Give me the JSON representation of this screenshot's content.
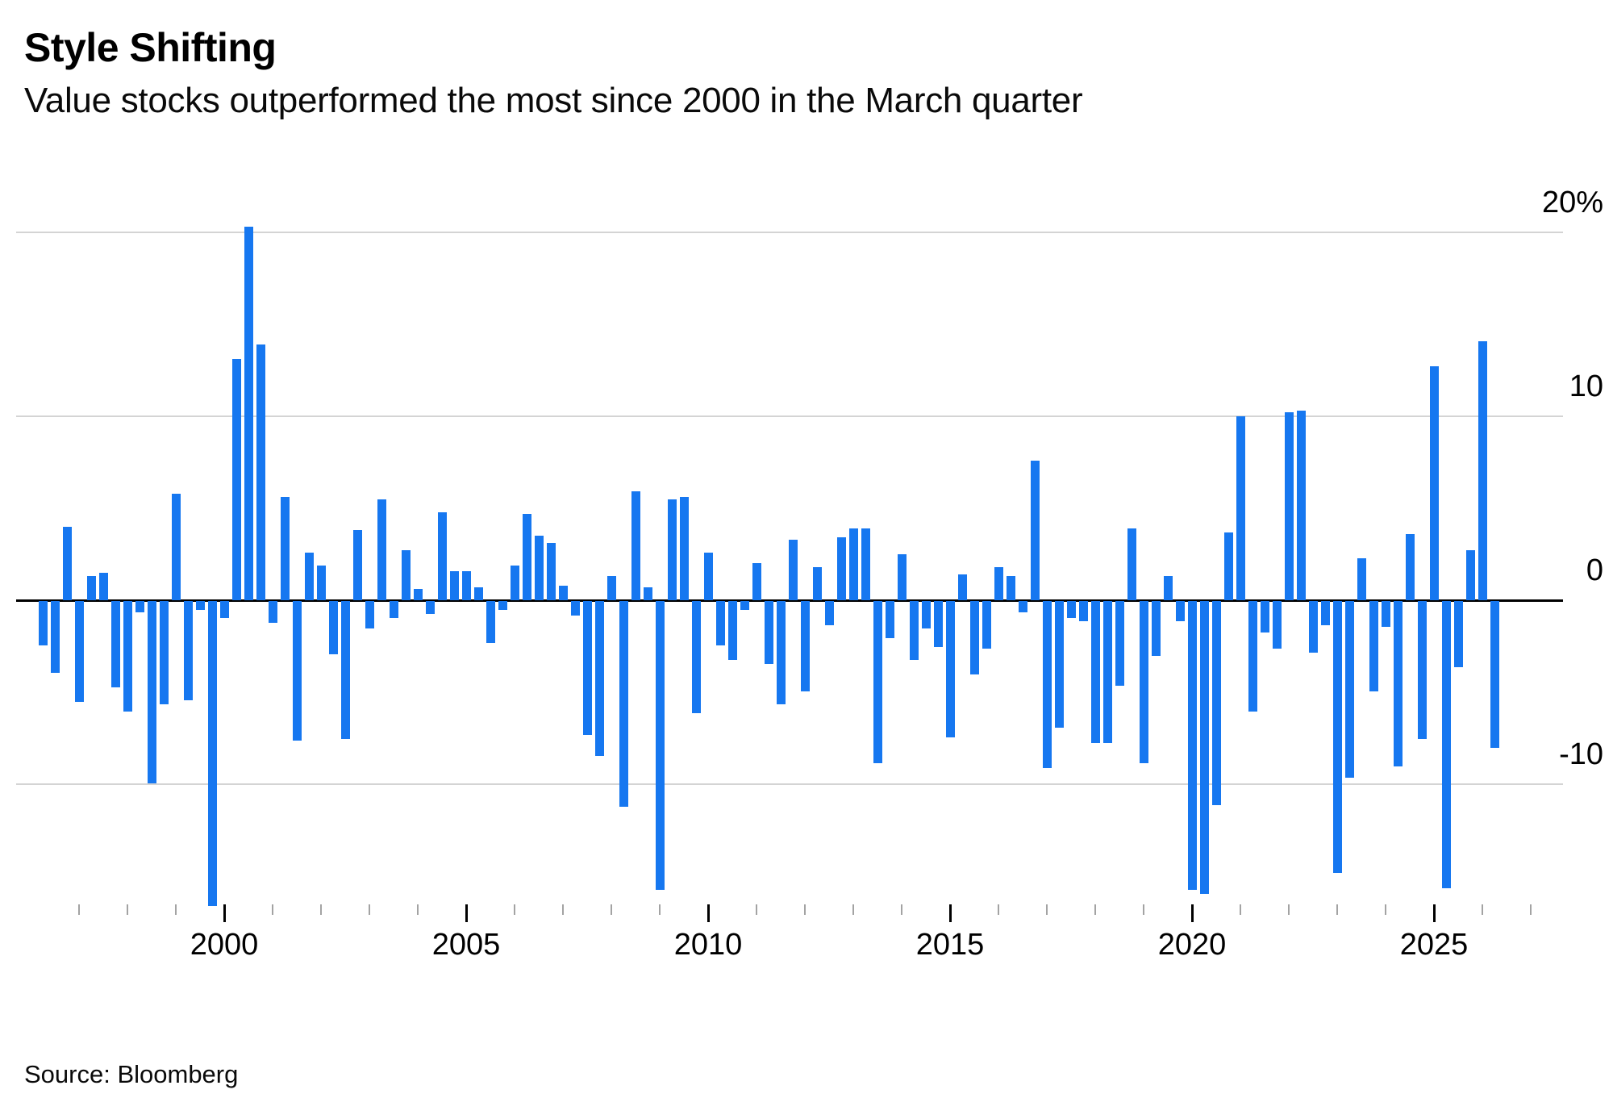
{
  "header": {
    "title": "Style Shifting",
    "subtitle": "Value stocks outperformed the most since 2000 in the March quarter"
  },
  "footer": {
    "source": "Source: Bloomberg"
  },
  "colors": {
    "bar": "#1677f0",
    "grid": "#d4d4d4",
    "zero_axis": "#000000",
    "tick_minor": "#a3a3a3",
    "tick_major": "#000000",
    "text": "#000000"
  },
  "chart_data": {
    "type": "bar",
    "title": "Style Shifting",
    "subtitle": "Value stocks outperformed the most since 2000 in the March quarter",
    "unit": "%",
    "grid": "horizontal-only",
    "legend": "none",
    "y_axis": {
      "side": "right",
      "min": -20,
      "max": 22,
      "ticks": [
        {
          "label": "20%",
          "value": 20
        },
        {
          "label": "10",
          "value": 10
        },
        {
          "label": "0",
          "value": 0
        },
        {
          "label": "-10",
          "value": -10
        }
      ]
    },
    "x_axis": {
      "tick_year_start": 1997,
      "tick_year_end": 2027,
      "labeled_years": [
        "2000",
        "2005",
        "2010",
        "2015",
        "2020",
        "2025"
      ]
    },
    "categories": [
      "1996 Q2",
      "1996 Q3",
      "1996 Q4",
      "1997 Q1",
      "1997 Q2",
      "1997 Q3",
      "1997 Q4",
      "1998 Q1",
      "1998 Q2",
      "1998 Q3",
      "1998 Q4",
      "1999 Q1",
      "1999 Q2",
      "1999 Q3",
      "1999 Q4",
      "2000 Q1",
      "2000 Q2",
      "2000 Q3",
      "2000 Q4",
      "2001 Q1",
      "2001 Q2",
      "2001 Q3",
      "2001 Q4",
      "2002 Q1",
      "2002 Q2",
      "2002 Q3",
      "2002 Q4",
      "2003 Q1",
      "2003 Q2",
      "2003 Q3",
      "2003 Q4",
      "2004 Q1",
      "2004 Q2",
      "2004 Q3",
      "2004 Q4",
      "2005 Q1",
      "2005 Q2",
      "2005 Q3",
      "2005 Q4",
      "2006 Q1",
      "2006 Q2",
      "2006 Q3",
      "2006 Q4",
      "2007 Q1",
      "2007 Q2",
      "2007 Q3",
      "2007 Q4",
      "2008 Q1",
      "2008 Q2",
      "2008 Q3",
      "2008 Q4",
      "2009 Q1",
      "2009 Q2",
      "2009 Q3",
      "2009 Q4",
      "2010 Q1",
      "2010 Q2",
      "2010 Q3",
      "2010 Q4",
      "2011 Q1",
      "2011 Q2",
      "2011 Q3",
      "2011 Q4",
      "2012 Q1",
      "2012 Q2",
      "2012 Q3",
      "2012 Q4",
      "2013 Q1",
      "2013 Q2",
      "2013 Q3",
      "2013 Q4",
      "2014 Q1",
      "2014 Q2",
      "2014 Q3",
      "2014 Q4",
      "2015 Q1",
      "2015 Q2",
      "2015 Q3",
      "2015 Q4",
      "2016 Q1",
      "2016 Q2",
      "2016 Q3",
      "2016 Q4",
      "2017 Q1",
      "2017 Q2",
      "2017 Q3",
      "2017 Q4",
      "2018 Q1",
      "2018 Q2",
      "2018 Q3",
      "2018 Q4",
      "2019 Q1",
      "2019 Q2",
      "2019 Q3",
      "2019 Q4",
      "2020 Q1",
      "2020 Q2",
      "2020 Q3",
      "2020 Q4",
      "2021 Q1",
      "2021 Q2",
      "2021 Q3",
      "2021 Q4",
      "2022 Q1",
      "2022 Q2",
      "2022 Q3",
      "2022 Q4",
      "2023 Q1",
      "2023 Q2",
      "2023 Q3",
      "2023 Q4",
      "2024 Q1",
      "2024 Q2",
      "2024 Q3",
      "2024 Q4",
      "2025 Q1",
      "2025 Q2",
      "2025 Q3",
      "2025 Q4",
      "2026 Q1",
      "2026 Q2"
    ],
    "values": [
      -2.4,
      -3.9,
      4.0,
      -5.5,
      1.3,
      1.5,
      -4.7,
      -6.0,
      -0.6,
      -9.9,
      -5.6,
      5.8,
      -5.4,
      -0.5,
      -16.6,
      -0.9,
      13.1,
      20.3,
      13.9,
      -1.2,
      5.6,
      -7.6,
      2.6,
      1.9,
      -2.9,
      -7.5,
      3.8,
      -1.5,
      5.5,
      -0.9,
      2.7,
      0.6,
      -0.7,
      4.8,
      1.6,
      1.6,
      0.7,
      -2.3,
      -0.5,
      1.9,
      4.7,
      3.5,
      3.1,
      0.8,
      -0.8,
      -7.3,
      -8.4,
      1.3,
      -11.2,
      5.9,
      0.7,
      -15.7,
      5.5,
      5.6,
      -6.1,
      2.6,
      -2.4,
      -3.2,
      -0.5,
      2.0,
      -3.4,
      -5.6,
      3.3,
      -4.9,
      1.8,
      -1.3,
      3.4,
      3.9,
      3.9,
      -8.8,
      -2.0,
      2.5,
      -3.2,
      -1.5,
      -2.5,
      -7.4,
      1.4,
      -4.0,
      -2.6,
      1.8,
      1.3,
      -0.6,
      7.6,
      -9.1,
      -6.9,
      -0.9,
      -1.1,
      -7.7,
      -7.7,
      -4.6,
      3.9,
      -8.8,
      -3.0,
      1.3,
      -1.1,
      -15.7,
      -15.9,
      -11.1,
      3.7,
      10.0,
      -6.0,
      -1.7,
      -2.6,
      10.2,
      10.3,
      -2.8,
      -1.3,
      -14.8,
      -9.6,
      2.3,
      -4.9,
      -1.4,
      -9.0,
      3.6,
      -7.5,
      12.7,
      -15.6,
      -3.6,
      2.7,
      14.1,
      -8.0
    ]
  }
}
